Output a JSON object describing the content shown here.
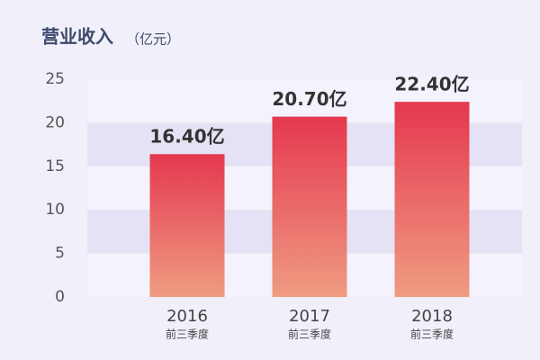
{
  "chart_data": {
    "type": "bar",
    "title": "营业收入",
    "subtitle": "（亿元）",
    "categories": [
      "2016",
      "2017",
      "2018"
    ],
    "category_sublabels": [
      "前三季度",
      "前三季度",
      "前三季度"
    ],
    "values": [
      16.4,
      20.7,
      22.4
    ],
    "value_labels": [
      "16.40亿",
      "20.70亿",
      "22.40亿"
    ],
    "color": "#e5384f",
    "ylim": [
      0,
      25
    ],
    "yticks": [
      0,
      5,
      10,
      15,
      20,
      25
    ],
    "grid": true
  }
}
